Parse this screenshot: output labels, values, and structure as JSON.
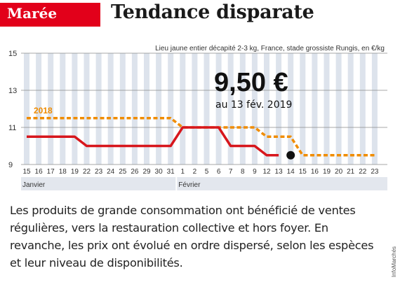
{
  "header": {
    "section_tag": "Marée",
    "title": "Tendance disparate"
  },
  "chart_data": {
    "type": "line",
    "subtitle": "Lieu jaune entier décapité 2-3 kg, France, stade grossiste Rungis, en €/kg",
    "ylim": [
      9,
      15
    ],
    "yticks": [
      9,
      11,
      13,
      15
    ],
    "x_tick_labels": [
      "15",
      "16",
      "17",
      "18",
      "19",
      "22",
      "23",
      "24",
      "25",
      "26",
      "29",
      "30",
      "31",
      "1",
      "2",
      "5",
      "6",
      "7",
      "8",
      "9",
      "12",
      "13",
      "14",
      "15",
      "16",
      "19",
      "20",
      "21",
      "22",
      "23"
    ],
    "month_labels": [
      {
        "label": "Janvier",
        "start_index": 0
      },
      {
        "label": "Février",
        "start_index": 13
      }
    ],
    "grid": true,
    "series": [
      {
        "name": "2018",
        "style": "dashed",
        "color": "#f08c00",
        "values": [
          11.5,
          11.5,
          11.5,
          11.5,
          11.5,
          11.5,
          11.5,
          11.5,
          11.5,
          11.5,
          11.5,
          11.5,
          11.5,
          11,
          11,
          11,
          11,
          11,
          11,
          11,
          10.5,
          10.5,
          10.5,
          9.5,
          9.5,
          9.5,
          9.5,
          9.5,
          9.5,
          9.5
        ]
      },
      {
        "name": "",
        "style": "solid",
        "color": "#d7161c",
        "values": [
          10.5,
          10.5,
          10.5,
          10.5,
          10.5,
          10,
          10,
          10,
          10,
          10,
          10,
          10,
          10,
          11,
          11,
          11,
          11,
          10,
          10,
          10,
          9.5,
          9.5,
          null,
          null,
          null,
          null,
          null,
          null,
          null,
          null
        ]
      }
    ],
    "annotation": {
      "value": "9,50 €",
      "date": "au 13 fév. 2019"
    },
    "colors": {
      "accent": "#e2001a",
      "current": "#d7161c",
      "previous": "#f08c00",
      "band": "#dde3ec",
      "marker": "#111111"
    }
  },
  "body_text": "Les produits de grande consommation ont bénéficié de ventes régulières, vers la restauration collective et hors foyer. En revanche, les prix ont évolué en ordre dispersé, selon les espèces et leur niveau de disponibilités.",
  "credit": "InfoMarchés"
}
